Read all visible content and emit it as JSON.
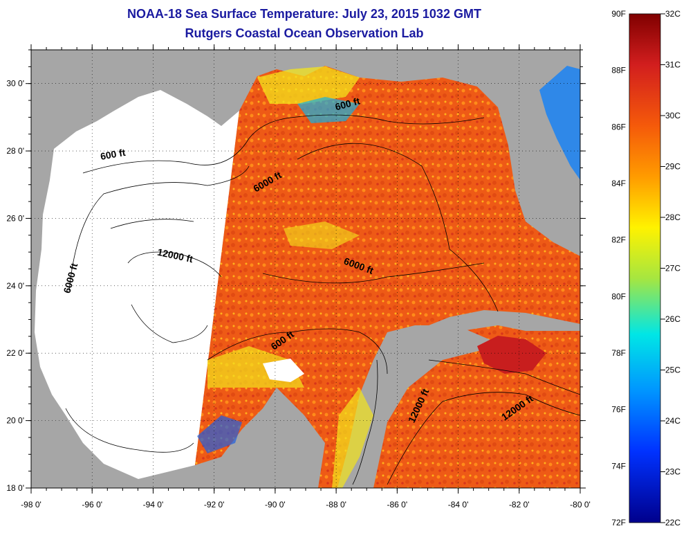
{
  "title": {
    "line1": "NOAA-18 Sea Surface Temperature:  July 23, 2015 1032 GMT",
    "line2": "Rutgers Coastal Ocean Observation Lab"
  },
  "map": {
    "lon_min": -98,
    "lon_max": -80,
    "lat_min": 18,
    "lat_max": 31,
    "lon_ticks": [
      {
        "value": -98,
        "label": "-98 0'"
      },
      {
        "value": -96,
        "label": "-96 0'"
      },
      {
        "value": -94,
        "label": "-94 0'"
      },
      {
        "value": -92,
        "label": "-92 0'"
      },
      {
        "value": -90,
        "label": "-90 0'"
      },
      {
        "value": -88,
        "label": "-88 0'"
      },
      {
        "value": -86,
        "label": "-86 0'"
      },
      {
        "value": -84,
        "label": "-84 0'"
      },
      {
        "value": -82,
        "label": "-82 0'"
      },
      {
        "value": -80,
        "label": "-80 0'"
      }
    ],
    "lat_ticks": [
      {
        "value": 18,
        "label": "18 0'"
      },
      {
        "value": 20,
        "label": "20 0'"
      },
      {
        "value": 22,
        "label": "22 0'"
      },
      {
        "value": 24,
        "label": "24 0'"
      },
      {
        "value": 26,
        "label": "26 0'"
      },
      {
        "value": 28,
        "label": "28 0'"
      },
      {
        "value": 30,
        "label": "30 0'"
      }
    ],
    "depth_labels": [
      {
        "text": "600 ft",
        "lon": -95.3,
        "lat": 27.8,
        "angle": -10
      },
      {
        "text": "6000 ft",
        "lon": -96.6,
        "lat": 24.2,
        "angle": -75
      },
      {
        "text": "12000 ft",
        "lon": -93.3,
        "lat": 24.8,
        "angle": 12
      },
      {
        "text": "600 ft",
        "lon": -87.6,
        "lat": 29.3,
        "angle": -15
      },
      {
        "text": "6000 ft",
        "lon": -90.2,
        "lat": 27.0,
        "angle": -30
      },
      {
        "text": "6000 ft",
        "lon": -87.3,
        "lat": 24.5,
        "angle": 20
      },
      {
        "text": "600 ft",
        "lon": -89.7,
        "lat": 22.3,
        "angle": -35
      },
      {
        "text": "12000 ft",
        "lon": -85.2,
        "lat": 20.4,
        "angle": -65
      },
      {
        "text": "12000 ft",
        "lon": -82.0,
        "lat": 20.3,
        "angle": -35
      }
    ],
    "colors": {
      "land": "#a6a6a6",
      "no_data": "#ffffff",
      "warm": "#f05a14"
    }
  },
  "colorbar": {
    "fahrenheit": [
      "90F",
      "88F",
      "86F",
      "84F",
      "82F",
      "80F",
      "78F",
      "76F",
      "74F",
      "72F"
    ],
    "celsius": [
      "32C",
      "31C",
      "30C",
      "29C",
      "28C",
      "27C",
      "26C",
      "25C",
      "24C",
      "23C",
      "22C"
    ],
    "colors": [
      "#800000",
      "#d21e1e",
      "#f55a0a",
      "#ff9b00",
      "#fff200",
      "#a6e640",
      "#00e6e6",
      "#0096ff",
      "#0032ff",
      "#00008c"
    ]
  }
}
